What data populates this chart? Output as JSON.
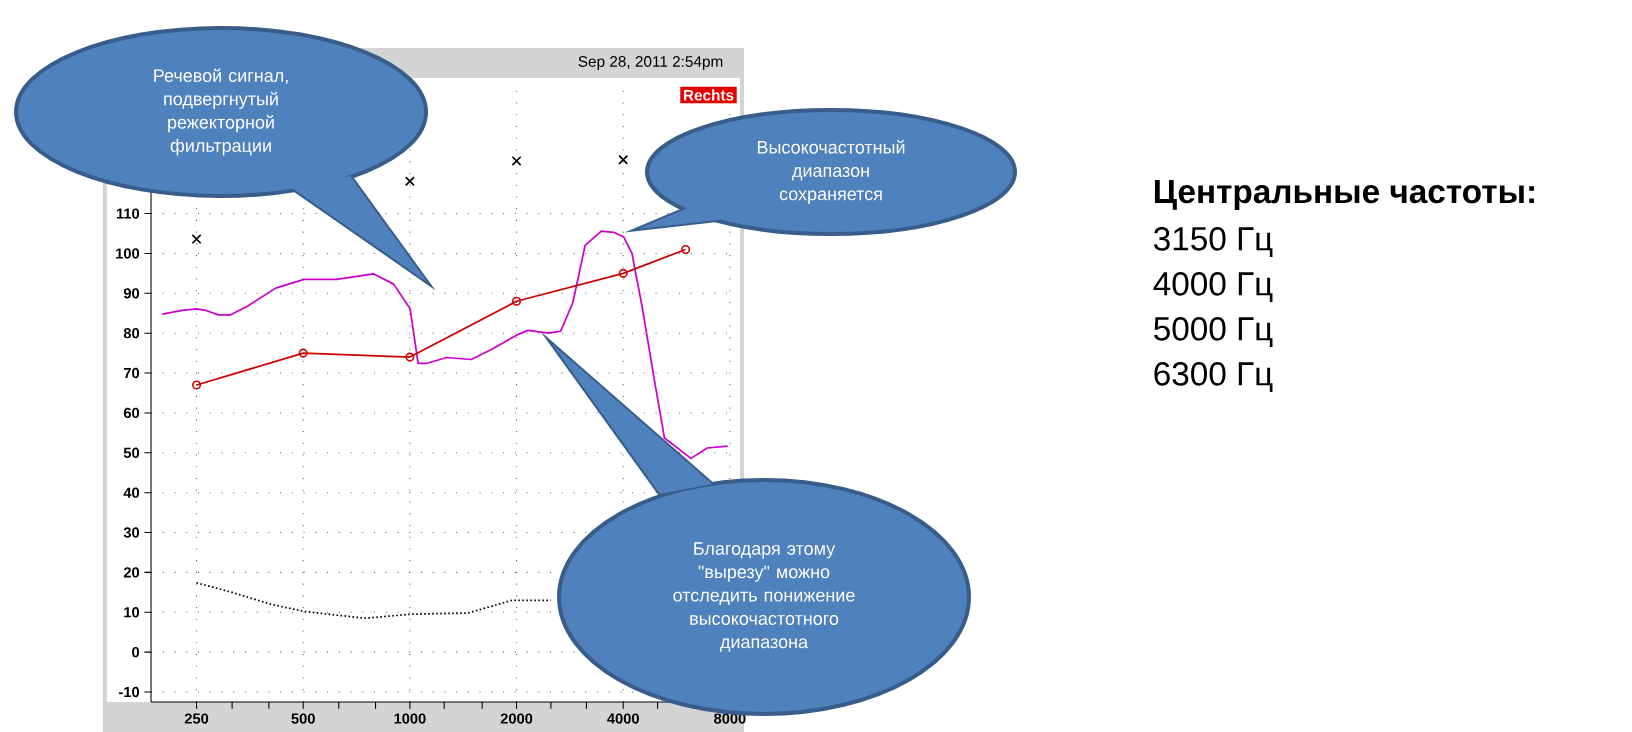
{
  "chart_data": {
    "type": "line",
    "annotations": [
      "Речевой сигнал, подвергнутый режекторной фильтрации",
      "Высокочастотный диапазон сохраняется",
      "Благодаря этому \"вырезу\" можно отследить понижение высокочастотного диапазона",
      "Sep 28, 2011 2:54pm",
      "Rechts",
      "Центральные частоты:",
      "3150 Гц",
      "4000 Гц",
      "5000 Гц",
      "6300 Гц"
    ],
    "log": "x",
    "xlim": [
      186,
      8200
    ],
    "xticks": [
      250,
      {
        "value": 315,
        "label": null
      },
      {
        "value": 400,
        "label": null
      },
      500,
      {
        "value": 630,
        "label": null
      },
      {
        "value": 800,
        "label": null
      },
      1000,
      {
        "value": 1250,
        "label": null
      },
      {
        "value": 1600,
        "label": null
      },
      2000,
      {
        "value": 2500,
        "label": null
      },
      {
        "value": 3150,
        "label": null
      },
      4000,
      {
        "value": 5000,
        "label": null
      },
      {
        "value": 6300,
        "label": null
      },
      8000
    ],
    "ylim": [
      -12.5,
      143
    ],
    "yticks": [
      -10,
      0,
      10,
      20,
      30,
      40,
      50,
      60,
      70,
      80,
      90,
      100,
      110
    ],
    "grid": true,
    "series": [
      {
        "color": "#cc00cc",
        "marker": "none",
        "line_style": "solid",
        "x": [
          200,
          228,
          250,
          266,
          288,
          312,
          347,
          418,
          503,
          621,
          789,
          900,
          1001,
          1055,
          1112,
          1270,
          1489,
          1698,
          2000,
          2155,
          2461,
          2665,
          2884,
          3123,
          3470,
          3758,
          4015,
          4234,
          4522,
          4897,
          5230,
          6212,
          6905,
          7885
        ],
        "values": [
          84.8,
          85.7,
          86.1,
          85.7,
          84.6,
          84.6,
          86.7,
          91.3,
          93.5,
          93.5,
          94.9,
          92.3,
          86.2,
          72.4,
          72.4,
          73.9,
          73.4,
          75.9,
          79.5,
          80.7,
          80.0,
          80.5,
          87.7,
          102.0,
          105.6,
          105.3,
          104.1,
          100.0,
          86.7,
          68.3,
          53.7,
          48.6,
          51.2,
          51.7
        ]
      },
      {
        "color": "#cc0000",
        "marker": "circle",
        "line_style": "solid",
        "x": [
          250,
          500,
          1000,
          2000,
          4000,
          6000
        ],
        "values": [
          67,
          75,
          74,
          88,
          95,
          101
        ]
      },
      {
        "type": "scatter",
        "color": "#000000",
        "marker": "cross",
        "x": [
          250,
          1000,
          2000,
          4000
        ],
        "values": [
          103.6,
          118.1,
          123.2,
          123.5
        ]
      },
      {
        "color": "#000000",
        "marker": "none",
        "line_style": "dotted",
        "x": [
          250,
          312,
          406,
          503,
          748,
          1001,
          1457,
          1698,
          1939,
          2500
        ],
        "values": [
          17.4,
          15.1,
          12.0,
          10.2,
          8.5,
          9.5,
          9.8,
          11.5,
          13.0,
          13.0
        ]
      }
    ]
  }
}
